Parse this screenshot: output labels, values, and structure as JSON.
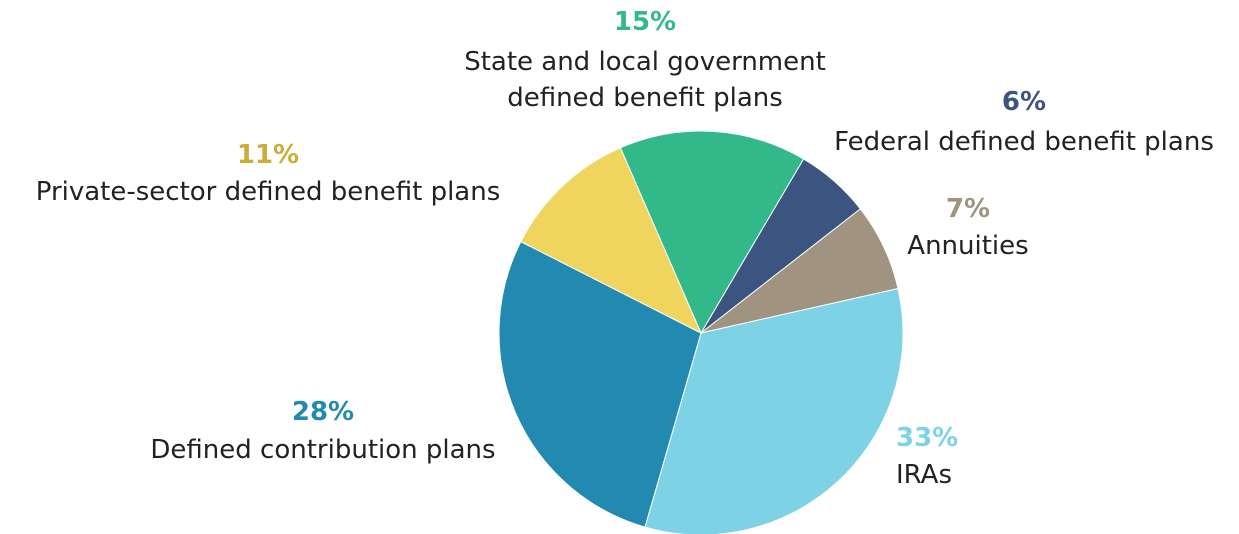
{
  "chart_data": {
    "type": "pie",
    "slices": [
      {
        "label": "Federal defined benefit plans",
        "pct_label": "6%",
        "value": 6,
        "color": "#3b5480"
      },
      {
        "label": "Annuities",
        "pct_label": "7%",
        "value": 7,
        "color": "#a0937f"
      },
      {
        "label": "IRAs",
        "pct_label": "33%",
        "value": 33,
        "color": "#7dd2e6"
      },
      {
        "label": "Defined contribution plans",
        "pct_label": "28%",
        "value": 28,
        "color": "#2289b0"
      },
      {
        "label": "Private-sector defined benefit plans",
        "pct_label": "11%",
        "value": 11,
        "color": "#efd55e"
      },
      {
        "label_lines": [
          "State and local government",
          "defined benefit plans"
        ],
        "pct_label": "15%",
        "value": 15,
        "color": "#33b889"
      }
    ],
    "pct_colors": {
      "Federal": "#3b5480",
      "Annuities": "#a0937f",
      "IRAs": "#7dd2e6",
      "DC": "#2289b0",
      "Private": "#c9ae3a",
      "State": "#33b889"
    }
  }
}
